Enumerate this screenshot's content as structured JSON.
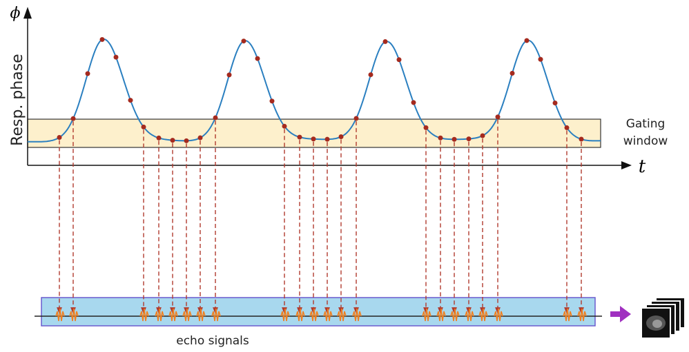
{
  "axes": {
    "y_symbol": "ϕ",
    "y_label": "Resp. phase",
    "x_symbol": "t"
  },
  "gating_window": {
    "label_lines": [
      "Gating",
      "window"
    ]
  },
  "echo": {
    "label": "echo signals"
  }
}
